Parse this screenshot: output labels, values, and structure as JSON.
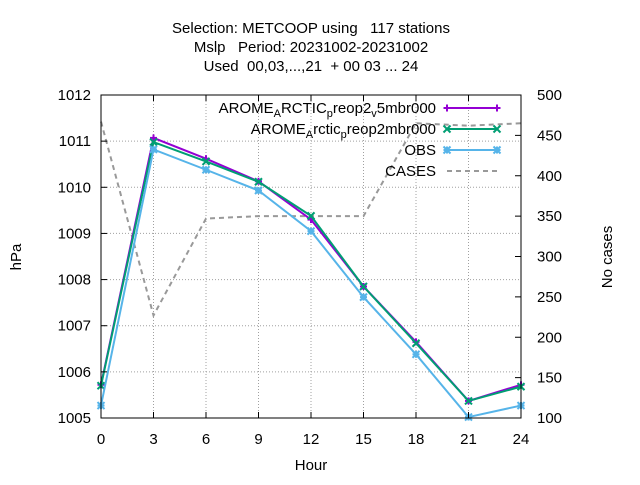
{
  "chart_data": {
    "type": "line",
    "title_lines": [
      "Selection: METCOOP using   117 stations",
      "Mslp   Period: 20231002-20231002",
      "Used  00,03,...,21  + 00 03 ... 24"
    ],
    "xlabel": "Hour",
    "ylabel": "hPa",
    "y2label": "No cases",
    "x": [
      0,
      3,
      6,
      9,
      12,
      15,
      18,
      21,
      24
    ],
    "xlim": [
      0,
      24
    ],
    "xticks": [
      "0",
      "3",
      "6",
      "9",
      "12",
      "15",
      "18",
      "21",
      "24"
    ],
    "ylim": [
      1005,
      1012
    ],
    "yticks": [
      "1005",
      "1006",
      "1007",
      "1008",
      "1009",
      "1010",
      "1011",
      "1012"
    ],
    "y2lim": [
      100,
      500
    ],
    "y2ticks": [
      "100",
      "150",
      "200",
      "250",
      "300",
      "350",
      "400",
      "450",
      "500"
    ],
    "grid": true,
    "legend_position": "top-right",
    "series": [
      {
        "name": "AROME_ARCTIC_preop2_v5mbr000",
        "legend_parts": [
          "AROME",
          "A",
          "RCTIC",
          "p",
          "reop2",
          "v",
          "5mbr000"
        ],
        "axis": "left",
        "color": "#9400d3",
        "marker": "plus",
        "values": [
          1005.72,
          1011.07,
          1010.62,
          1010.13,
          1009.3,
          1007.85,
          1006.65,
          1005.37,
          1005.72
        ]
      },
      {
        "name": "AROME_Arctic_preop2mbr000",
        "legend_parts": [
          "AROME",
          "A",
          "rctic",
          "p",
          "reop2mbr000"
        ],
        "axis": "left",
        "color": "#009e73",
        "marker": "cross",
        "values": [
          1005.7,
          1010.98,
          1010.56,
          1010.12,
          1009.38,
          1007.85,
          1006.62,
          1005.37,
          1005.68
        ]
      },
      {
        "name": "OBS",
        "axis": "left",
        "color": "#56b4e9",
        "marker": "star",
        "values": [
          1005.27,
          1010.82,
          1010.38,
          1009.93,
          1009.05,
          1007.62,
          1006.38,
          1005.02,
          1005.27
        ]
      },
      {
        "name": "CASES",
        "axis": "right",
        "color": "#999999",
        "dashed": true,
        "values": [
          467,
          227,
          347,
          350,
          350,
          350,
          465,
          462,
          465
        ]
      }
    ]
  }
}
